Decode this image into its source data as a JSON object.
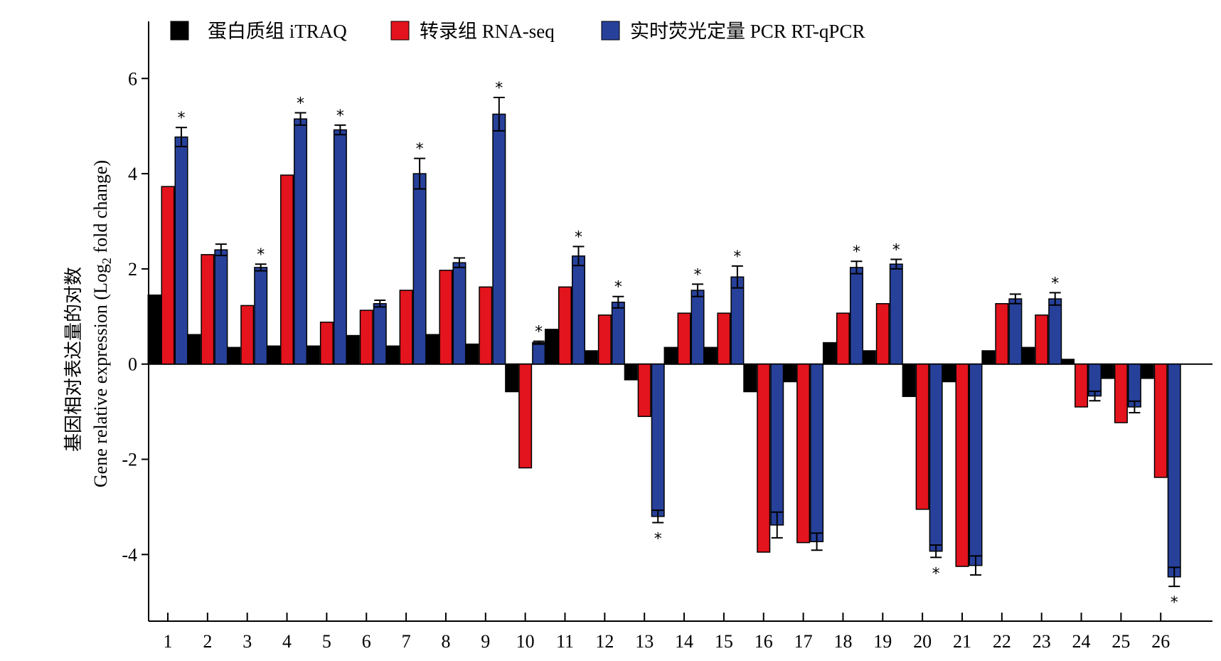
{
  "chart_data": {
    "type": "bar",
    "ylabel_cn": "基因相对表达量的对数",
    "ylabel_en_prefix": "Gene relative expression (Log",
    "ylabel_en_sub": "2",
    "ylabel_en_suffix": " fold change)",
    "ylim": [
      -5.4,
      7.2
    ],
    "yticks": [
      6,
      4,
      2,
      0,
      -2,
      -4
    ],
    "ytick_labels": [
      "6",
      "4",
      "2",
      "0",
      "-2",
      "-4"
    ],
    "categories": [
      "1",
      "2",
      "3",
      "4",
      "5",
      "6",
      "7",
      "8",
      "9",
      "10",
      "11",
      "12",
      "13",
      "14",
      "15",
      "16",
      "17",
      "18",
      "19",
      "20",
      "21",
      "22",
      "23",
      "24",
      "25",
      "26"
    ],
    "legend_position": "top",
    "series": [
      {
        "name": "蛋白质组 iTRAQ",
        "color": "#000000",
        "values": [
          1.45,
          0.62,
          0.35,
          0.38,
          0.38,
          0.6,
          0.38,
          0.62,
          0.42,
          -0.58,
          0.73,
          0.28,
          -0.33,
          0.35,
          0.35,
          -0.58,
          -0.37,
          0.45,
          0.28,
          -0.68,
          -0.37,
          0.28,
          0.35,
          0.1,
          -0.3,
          -0.3
        ]
      },
      {
        "name": "转录组 RNA-seq",
        "color": "#e3141d",
        "values": [
          3.73,
          2.3,
          1.23,
          3.97,
          0.88,
          1.13,
          1.55,
          1.97,
          1.62,
          -2.18,
          1.62,
          1.03,
          -1.1,
          1.07,
          1.07,
          -3.95,
          -3.75,
          1.07,
          1.27,
          -3.05,
          -4.25,
          1.27,
          1.03,
          -0.9,
          -1.23,
          -2.38
        ]
      },
      {
        "name": "实时荧光定量 PCR RT-qPCR",
        "color": "#27419a",
        "values": [
          4.77,
          2.4,
          2.03,
          5.15,
          4.92,
          1.27,
          4.0,
          2.13,
          5.25,
          0.45,
          2.27,
          1.3,
          -3.2,
          1.55,
          1.83,
          -3.38,
          -3.73,
          2.03,
          2.1,
          -3.93,
          -4.23,
          1.37,
          1.37,
          -0.67,
          -0.9,
          -4.47
        ],
        "errors": [
          0.2,
          0.12,
          0.07,
          0.13,
          0.1,
          0.07,
          0.32,
          0.1,
          0.35,
          0.03,
          0.2,
          0.12,
          0.13,
          0.13,
          0.23,
          0.27,
          0.18,
          0.13,
          0.1,
          0.13,
          0.2,
          0.1,
          0.13,
          0.1,
          0.12,
          0.2
        ]
      }
    ],
    "significance_symbol": "*",
    "significant_categories": [
      "1",
      "3",
      "4",
      "5",
      "7",
      "9",
      "10",
      "11",
      "12",
      "13",
      "14",
      "15",
      "18",
      "19",
      "20",
      "23",
      "26"
    ]
  }
}
